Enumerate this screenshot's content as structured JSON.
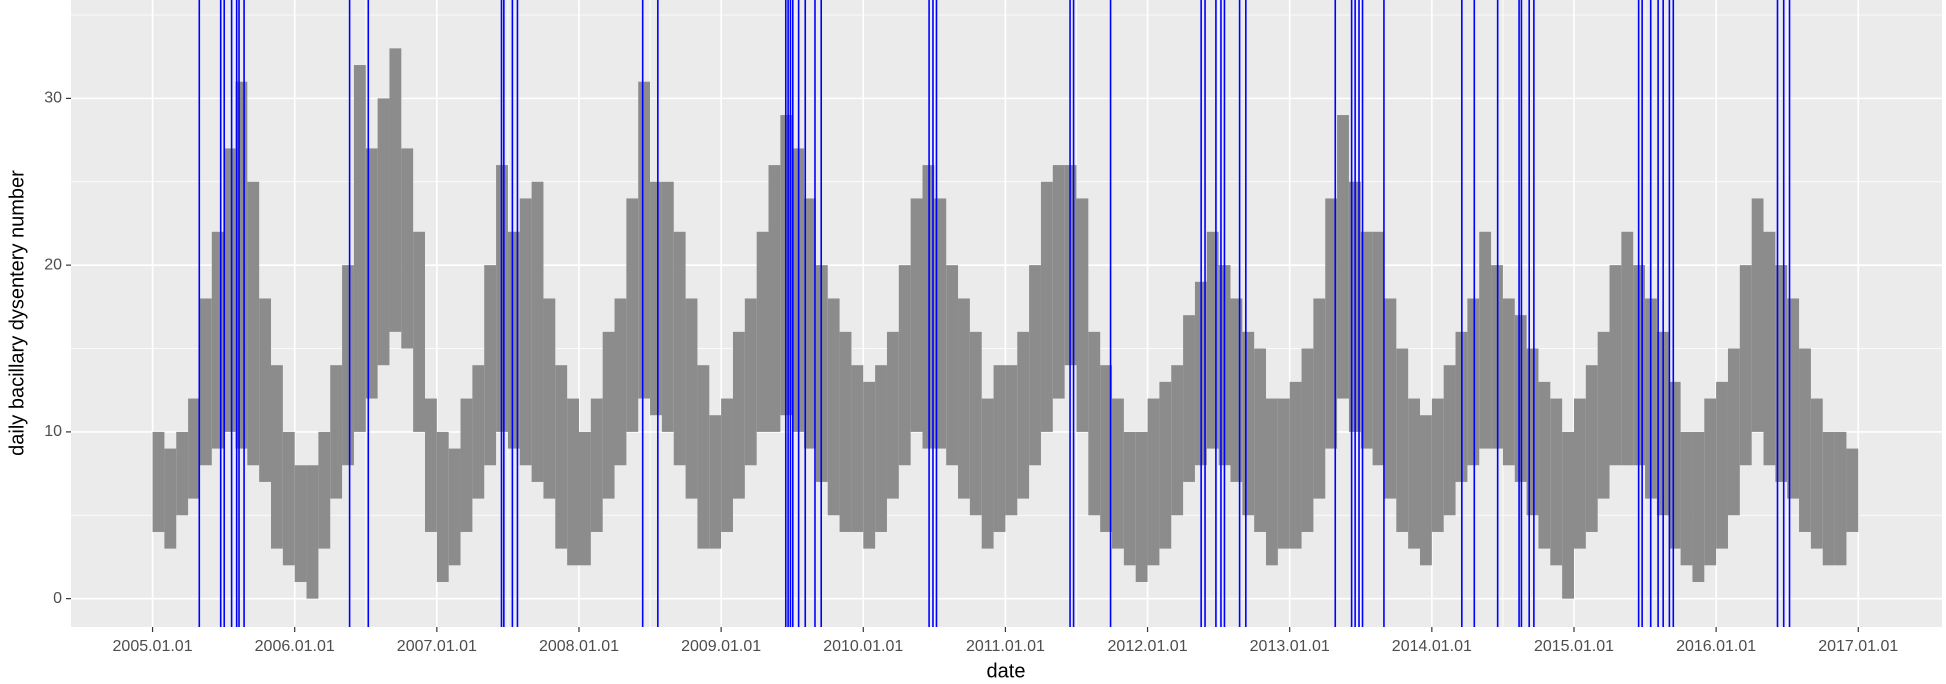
{
  "chart_data": {
    "type": "range",
    "xlabel": "date",
    "ylabel": "daily bacillary dysentery number",
    "color": "#8c8c8c",
    "event_color": "#0000ff",
    "panel_color": "#ebebeb",
    "grid": true,
    "xlim": [
      "2004.06.05",
      "2017.08.04"
    ],
    "xticks": [
      "2005.01.01",
      "2006.01.01",
      "2007.01.01",
      "2008.01.01",
      "2009.01.01",
      "2010.01.01",
      "2011.01.01",
      "2012.01.01",
      "2013.01.01",
      "2014.01.01",
      "2015.01.01",
      "2016.01.01",
      "2017.01.01"
    ],
    "ylim": [
      -1.7,
      35.9
    ],
    "yticks": [
      0,
      10,
      20,
      30
    ],
    "x": [
      "2005.01",
      "2005.02",
      "2005.03",
      "2005.04",
      "2005.05",
      "2005.06",
      "2005.07",
      "2005.08",
      "2005.09",
      "2005.10",
      "2005.11",
      "2005.12",
      "2006.01",
      "2006.02",
      "2006.03",
      "2006.04",
      "2006.05",
      "2006.06",
      "2006.07",
      "2006.08",
      "2006.09",
      "2006.10",
      "2006.11",
      "2006.12",
      "2007.01",
      "2007.02",
      "2007.03",
      "2007.04",
      "2007.05",
      "2007.06",
      "2007.07",
      "2007.08",
      "2007.09",
      "2007.10",
      "2007.11",
      "2007.12",
      "2008.01",
      "2008.02",
      "2008.03",
      "2008.04",
      "2008.05",
      "2008.06",
      "2008.07",
      "2008.08",
      "2008.09",
      "2008.10",
      "2008.11",
      "2008.12",
      "2009.01",
      "2009.02",
      "2009.03",
      "2009.04",
      "2009.05",
      "2009.06",
      "2009.07",
      "2009.08",
      "2009.09",
      "2009.10",
      "2009.11",
      "2009.12",
      "2010.01",
      "2010.02",
      "2010.03",
      "2010.04",
      "2010.05",
      "2010.06",
      "2010.07",
      "2010.08",
      "2010.09",
      "2010.10",
      "2010.11",
      "2010.12",
      "2011.01",
      "2011.02",
      "2011.03",
      "2011.04",
      "2011.05",
      "2011.06",
      "2011.07",
      "2011.08",
      "2011.09",
      "2011.10",
      "2011.11",
      "2011.12",
      "2012.01",
      "2012.02",
      "2012.03",
      "2012.04",
      "2012.05",
      "2012.06",
      "2012.07",
      "2012.08",
      "2012.09",
      "2012.10",
      "2012.11",
      "2012.12",
      "2013.01",
      "2013.02",
      "2013.03",
      "2013.04",
      "2013.05",
      "2013.06",
      "2013.07",
      "2013.08",
      "2013.09",
      "2013.10",
      "2013.11",
      "2013.12",
      "2014.01",
      "2014.02",
      "2014.03",
      "2014.04",
      "2014.05",
      "2014.06",
      "2014.07",
      "2014.08",
      "2014.09",
      "2014.10",
      "2014.11",
      "2014.12",
      "2015.01",
      "2015.02",
      "2015.03",
      "2015.04",
      "2015.05",
      "2015.06",
      "2015.07",
      "2015.08",
      "2015.09",
      "2015.10",
      "2015.11",
      "2015.12",
      "2016.01",
      "2016.02",
      "2016.03",
      "2016.04",
      "2016.05",
      "2016.06",
      "2016.07",
      "2016.08",
      "2016.09",
      "2016.10",
      "2016.11",
      "2016.12"
    ],
    "low": [
      4,
      3,
      5,
      6,
      8,
      9,
      10,
      9,
      8,
      7,
      3,
      2,
      1,
      0,
      3,
      6,
      8,
      10,
      12,
      14,
      16,
      15,
      10,
      4,
      1,
      2,
      4,
      6,
      8,
      10,
      9,
      8,
      7,
      6,
      3,
      2,
      2,
      4,
      6,
      8,
      10,
      12,
      11,
      10,
      8,
      6,
      3,
      3,
      4,
      6,
      8,
      10,
      10,
      11,
      10,
      9,
      7,
      5,
      4,
      4,
      3,
      4,
      6,
      8,
      10,
      9,
      9,
      8,
      6,
      5,
      3,
      4,
      5,
      6,
      8,
      10,
      12,
      14,
      10,
      5,
      4,
      3,
      2,
      1,
      2,
      3,
      5,
      7,
      8,
      9,
      8,
      7,
      5,
      4,
      2,
      3,
      3,
      4,
      6,
      9,
      12,
      10,
      9,
      8,
      6,
      4,
      3,
      2,
      4,
      5,
      7,
      8,
      9,
      9,
      8,
      7,
      5,
      3,
      2,
      0,
      3,
      4,
      6,
      8,
      8,
      8,
      6,
      5,
      3,
      2,
      1,
      2,
      3,
      5,
      8,
      10,
      8,
      7,
      6,
      4,
      3,
      2,
      2,
      4
    ],
    "high": [
      10,
      9,
      10,
      12,
      18,
      22,
      27,
      31,
      25,
      18,
      14,
      10,
      8,
      8,
      10,
      14,
      20,
      32,
      27,
      30,
      33,
      27,
      22,
      12,
      10,
      9,
      12,
      14,
      20,
      26,
      22,
      24,
      25,
      18,
      14,
      12,
      10,
      12,
      16,
      18,
      24,
      31,
      25,
      25,
      22,
      18,
      14,
      11,
      12,
      16,
      18,
      22,
      26,
      29,
      27,
      24,
      20,
      18,
      16,
      14,
      13,
      14,
      16,
      20,
      24,
      26,
      24,
      20,
      18,
      16,
      12,
      14,
      14,
      16,
      20,
      25,
      26,
      26,
      24,
      16,
      14,
      12,
      10,
      10,
      12,
      13,
      14,
      17,
      19,
      22,
      20,
      18,
      16,
      15,
      12,
      12,
      13,
      15,
      18,
      24,
      29,
      25,
      22,
      22,
      18,
      15,
      12,
      11,
      12,
      14,
      16,
      18,
      22,
      20,
      18,
      17,
      15,
      13,
      12,
      10,
      12,
      14,
      16,
      20,
      22,
      20,
      18,
      16,
      13,
      10,
      10,
      12,
      13,
      15,
      20,
      24,
      22,
      20,
      18,
      15,
      12,
      10,
      10,
      9
    ],
    "events": [
      "2005.05.01",
      "2005.06.25",
      "2005.07.04",
      "2005.07.23",
      "2005.08.05",
      "2005.08.11",
      "2005.08.24",
      "2006.05.22",
      "2006.07.09",
      "2007.06.16",
      "2007.06.22",
      "2007.07.14",
      "2007.07.27",
      "2008.06.13",
      "2008.07.22",
      "2009.06.16",
      "2009.06.22",
      "2009.06.28",
      "2009.07.04",
      "2009.07.19",
      "2009.08.05",
      "2009.08.30",
      "2009.09.15",
      "2010.06.19",
      "2010.06.29",
      "2010.07.08",
      "2011.06.16",
      "2011.06.25",
      "2011.09.28",
      "2012.05.18",
      "2012.05.28",
      "2012.06.25",
      "2012.07.08",
      "2012.07.17",
      "2012.08.25",
      "2012.09.10",
      "2013.04.28",
      "2013.06.09",
      "2013.06.18",
      "2013.06.28",
      "2013.07.07",
      "2013.08.31",
      "2014.03.19",
      "2014.04.20",
      "2014.06.19",
      "2014.08.13",
      "2014.08.19",
      "2014.09.08",
      "2014.09.20",
      "2015.06.16",
      "2015.06.25",
      "2015.07.17",
      "2015.08.05",
      "2015.08.18",
      "2015.09.03",
      "2015.09.13",
      "2016.06.07",
      "2016.06.23",
      "2016.07.08"
    ]
  }
}
